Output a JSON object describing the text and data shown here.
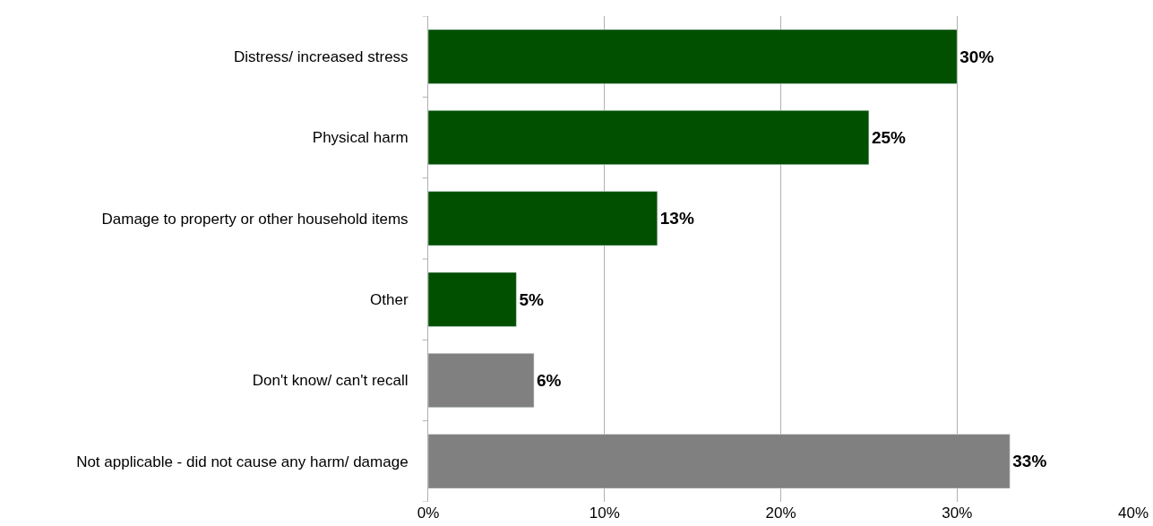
{
  "chart_data": {
    "type": "bar",
    "orientation": "horizontal",
    "categories": [
      "Distress/ increased stress",
      "Physical harm",
      "Damage to property or other household items",
      "Other",
      "Don't know/ can't recall",
      "Not applicable - did not cause any harm/ damage"
    ],
    "values": [
      30,
      25,
      13,
      5,
      6,
      33
    ],
    "colors": [
      "#005000",
      "#005000",
      "#005000",
      "#005000",
      "#808080",
      "#808080"
    ],
    "value_labels": [
      "30%",
      "25%",
      "13%",
      "5%",
      "6%",
      "33%"
    ],
    "xlim": [
      0,
      40
    ],
    "xticks": [
      {
        "value": 0,
        "label": "0%"
      },
      {
        "value": 10,
        "label": "10%"
      },
      {
        "value": 20,
        "label": "20%"
      },
      {
        "value": 30,
        "label": "30%"
      },
      {
        "value": 40,
        "label": "40%"
      }
    ],
    "grid": "x"
  }
}
